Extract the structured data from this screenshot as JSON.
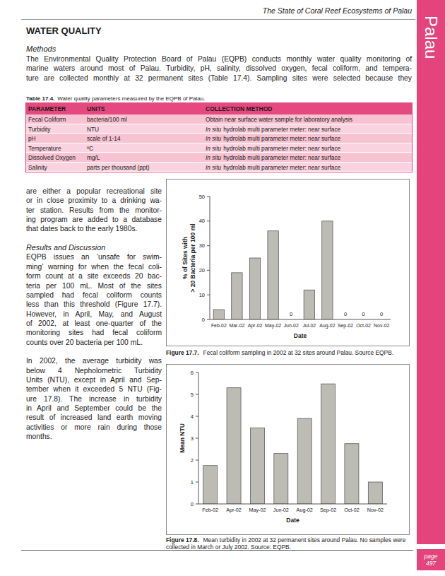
{
  "header": {
    "running_title": "The State of Coral Reef Ecosystems of Palau",
    "side_tab": "Palau",
    "page_label": "page",
    "page_number": "497"
  },
  "section_title": "WATER QUALITY",
  "methods": {
    "heading": "Methods",
    "full_width_lines": [
      "The Environmental Quality Protection Board of Palau (EQPB) conducts monthly water quality monitoring of",
      "marine waters around most of Palau.  Turbidity, pH, salinity, dissolved oxygen, fecal coliform, and tempera-",
      "ture are collected monthly at 32 permanent sites (Table 17.4).  Sampling sites were selected because they"
    ],
    "column_lines": [
      "are either a popular recreational site",
      "or in close proximity to a drinking wa-",
      "ter station.  Results from the monitor-",
      "ing program are added to a database",
      "that dates back to the early 1980s."
    ]
  },
  "table": {
    "caption_label": "Table 17.4.",
    "caption": "Water quality parameters measured by the EQPB of Palau.",
    "headers": [
      "PARAMETER",
      "UNITS",
      "COLLECTION METHOD"
    ],
    "rows": [
      {
        "parameter": "Fecal Coliform",
        "units": "bacteria/100 ml",
        "method": "Obtain near surface water sample for laboratory analysis"
      },
      {
        "parameter": "Turbidity",
        "units": "NTU",
        "method_italic": "In situ",
        "method": "hydrolab multi parameter meter: near surface"
      },
      {
        "parameter": "pH",
        "units": "scale of 1-14",
        "method_italic": "In situ",
        "method": "hydrolab multi parameter meter: near surface"
      },
      {
        "parameter": "Temperature",
        "units": "ºC",
        "method_italic": "In situ",
        "method": "hydrolab multi parameter meter: near surface"
      },
      {
        "parameter": "Dissolved Oxygen",
        "units": "mg/L",
        "method_italic": "In situ",
        "method": "hydrolab multi parameter meter: near surface"
      },
      {
        "parameter": "Salinity",
        "units": "parts per thousand (ppt)",
        "method_italic": "In situ",
        "method": "hydrolab multi parameter meter: near surface"
      }
    ]
  },
  "results": {
    "heading": "Results and Discussion",
    "paragraphs": [
      [
        "EQPB issues an ‘unsafe for swim-",
        "ming’ warning for when the fecal coli-",
        "form count at a site exceeds 20 bac-",
        "teria per 100 mL.  Most of the sites",
        "sampled had fecal coliform counts",
        "less than this threshold (Figure 17.7).",
        "However, in April, May, and August",
        "of 2002, at least one-quarter of the",
        "monitoring sites had fecal coliform",
        "counts over 20 bacteria per 100 mL."
      ],
      [
        "In 2002, the average turbidity was",
        "below 4 Nepholometric Turbidity",
        "Units (NTU), except in April and Sep-",
        "tember when it exceeded 5 NTU (Fig-",
        "ure 17.8).  The increase in turbidity",
        "in April and September could be the",
        "result of increased land earth moving",
        "activities or more rain during those",
        "months."
      ]
    ]
  },
  "figures": [
    {
      "label": "Figure 17.7.",
      "caption": "Fecal coliform sampling in 2002 at 32 sites around Palau.  Source EQPB."
    },
    {
      "label": "Figure 17.8.",
      "caption": "Mean turbidity in 2002 at 32 permanent sites around Palau.  No samples were collected in March or July 2002.  Source: EQPB."
    }
  ],
  "chart_data": [
    {
      "type": "bar",
      "categories": [
        "Feb-02",
        "Mar-02",
        "Apr-02",
        "May-02",
        "Jun-02",
        "Jul-02",
        "Aug-02",
        "Sep-02",
        "Oct-02",
        "Nov-02"
      ],
      "values": [
        4,
        19,
        25,
        36,
        0,
        12,
        40,
        0,
        0,
        0
      ],
      "value_labels": [
        null,
        null,
        null,
        null,
        "0",
        null,
        null,
        "0",
        "0",
        "0"
      ],
      "data_labels": true,
      "color": "#bcbcb4",
      "xlabel": "Date",
      "ylabel": [
        "% of Sites with",
        "> 20 Bacteria per 100 ml"
      ],
      "ylim": [
        0,
        50
      ],
      "yticks": [
        0,
        10,
        20,
        30,
        40,
        50
      ],
      "grid": false
    },
    {
      "type": "bar",
      "categories": [
        "Feb-02",
        "Apr-02",
        "May-02",
        "Jun-02",
        "Aug-02",
        "Sep-02",
        "Oct-02",
        "Nov-02"
      ],
      "values": [
        1.75,
        5.3,
        3.47,
        2.3,
        3.9,
        5.48,
        2.75,
        1.0
      ],
      "color": "#bcbcb4",
      "xlabel": "Date",
      "ylabel": "Mean NTU",
      "ylim": [
        0,
        6
      ],
      "yticks": [
        0,
        1,
        2,
        3,
        4,
        5,
        6
      ],
      "grid": false
    }
  ]
}
